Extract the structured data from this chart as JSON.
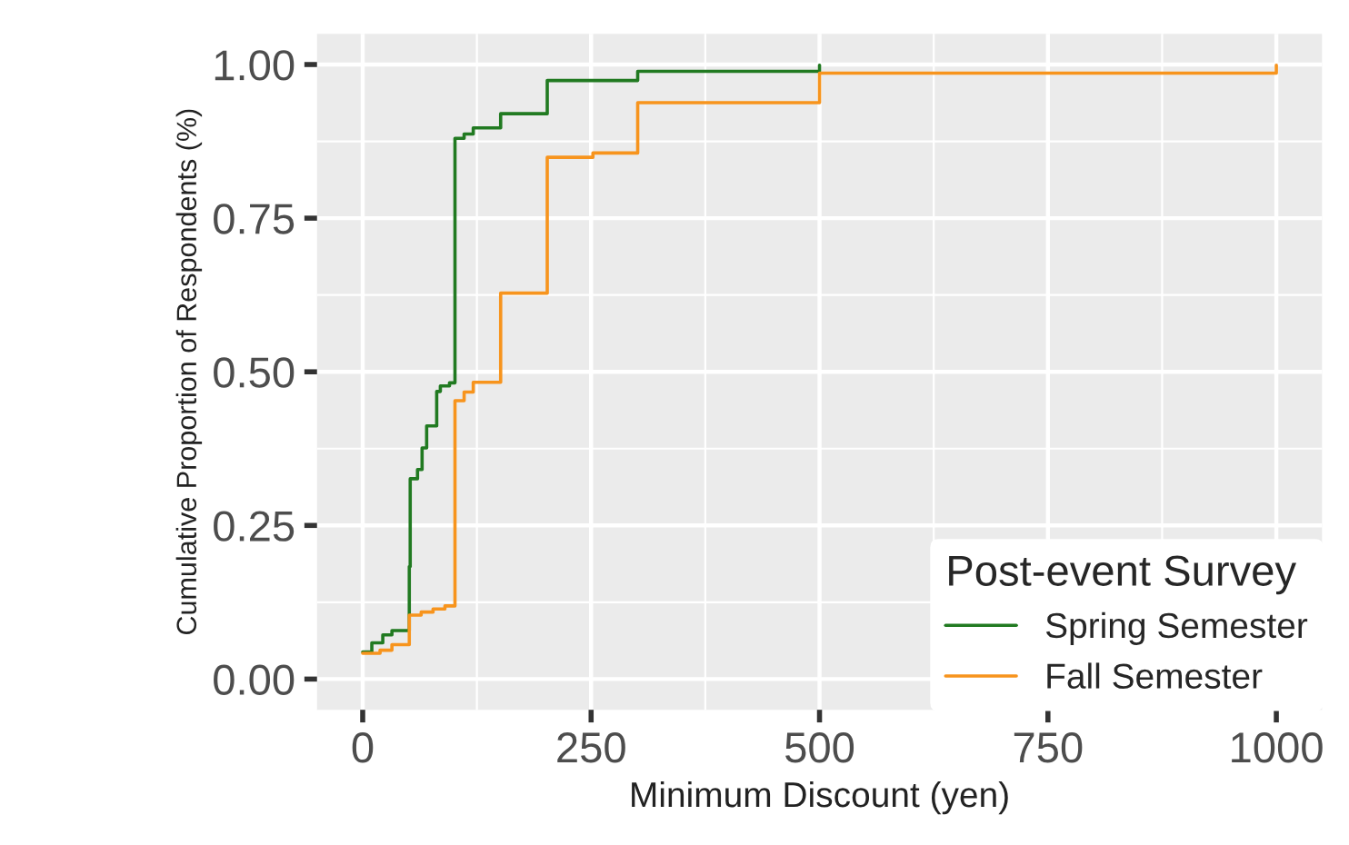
{
  "chart_data": {
    "type": "step",
    "xlabel": "Minimum Discount (yen)",
    "ylabel": "Cumulative Proportion of Respondents (%)",
    "legend_title": "Post-event Survey",
    "xlim": [
      -50,
      1050
    ],
    "xticks": [
      0,
      250,
      500,
      750,
      1000
    ],
    "ylim": [
      -0.05,
      1.05
    ],
    "yticks": [
      {
        "value": 0,
        "label": "0.00"
      },
      {
        "value": 0.25,
        "label": "0.25"
      },
      {
        "value": 0.5,
        "label": "0.50"
      },
      {
        "value": 0.75,
        "label": "0.75"
      },
      {
        "value": 1,
        "label": "1.00"
      }
    ],
    "grid": true,
    "legend": "bottom right",
    "series": [
      {
        "name": "Spring Semester",
        "color": "#217a21",
        "x": [
          0,
          10,
          22,
          32,
          51,
          52,
          60,
          65,
          70,
          81,
          85,
          95,
          101,
          111,
          121,
          151,
          202,
          301,
          500
        ],
        "values": [
          0.044,
          0.059,
          0.072,
          0.079,
          0.183,
          0.326,
          0.341,
          0.376,
          0.412,
          0.468,
          0.477,
          0.482,
          0.88,
          0.887,
          0.897,
          0.92,
          0.974,
          0.989,
          0.999
        ]
      },
      {
        "name": "Fall Semester",
        "color": "#f7941d",
        "x": [
          0,
          19,
          32,
          51,
          64,
          77,
          90,
          101,
          111,
          121,
          151,
          202,
          252,
          301,
          500,
          1000
        ],
        "values": [
          0.042,
          0.047,
          0.056,
          0.104,
          0.109,
          0.114,
          0.119,
          0.453,
          0.467,
          0.483,
          0.628,
          0.849,
          0.856,
          0.938,
          0.986,
          0.999
        ]
      }
    ]
  }
}
